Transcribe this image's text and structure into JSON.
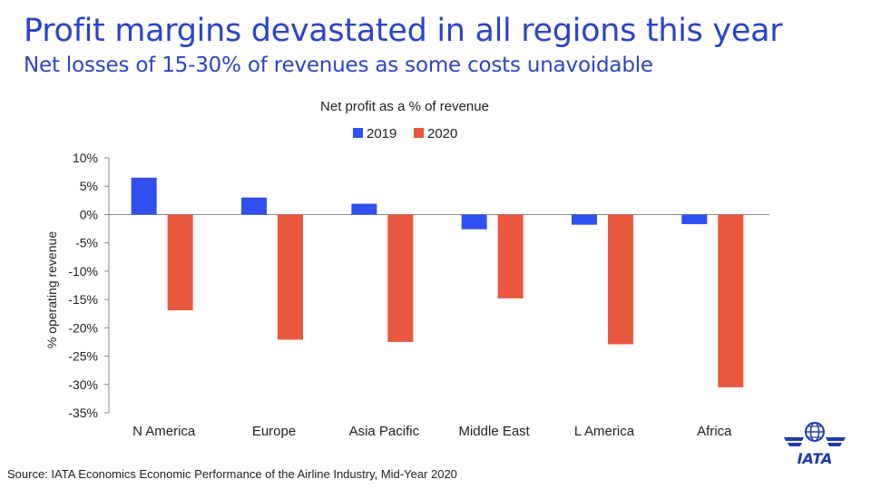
{
  "header": {
    "title": "Profit margins devastated in all regions this year",
    "subtitle": "Net losses of 15-30% of revenues as some costs unavoidable"
  },
  "source": "Source: IATA Economics Economic Performance of the Airline Industry, Mid-Year 2020",
  "logo": {
    "text": "IATA",
    "icon": "globe-icon"
  },
  "colors": {
    "accent": "#2a44c8",
    "series_2019": "#2f4ff0",
    "series_2020": "#e9573f"
  },
  "chart_data": {
    "type": "bar",
    "title": "Net profit as a % of revenue",
    "xlabel": "",
    "ylabel": "% operating revenue",
    "categories": [
      "N America",
      "Europe",
      "Asia Pacific",
      "Middle East",
      "L America",
      "Africa"
    ],
    "series": [
      {
        "name": "2019",
        "color": "#2f4ff0",
        "values": [
          6.5,
          3.0,
          1.9,
          -2.6,
          -1.8,
          -1.7
        ]
      },
      {
        "name": "2020",
        "color": "#e9573f",
        "values": [
          -16.9,
          -22.1,
          -22.5,
          -14.8,
          -22.9,
          -30.5
        ]
      }
    ],
    "ylim": [
      -35,
      10
    ],
    "yticks": [
      10,
      5,
      0,
      -5,
      -10,
      -15,
      -20,
      -25,
      -30,
      -35
    ],
    "ytick_labels": [
      "10%",
      "5%",
      "0%",
      "-5%",
      "-10%",
      "-15%",
      "-20%",
      "-25%",
      "-30%",
      "-35%"
    ],
    "legend": "top-center",
    "grid": false
  }
}
